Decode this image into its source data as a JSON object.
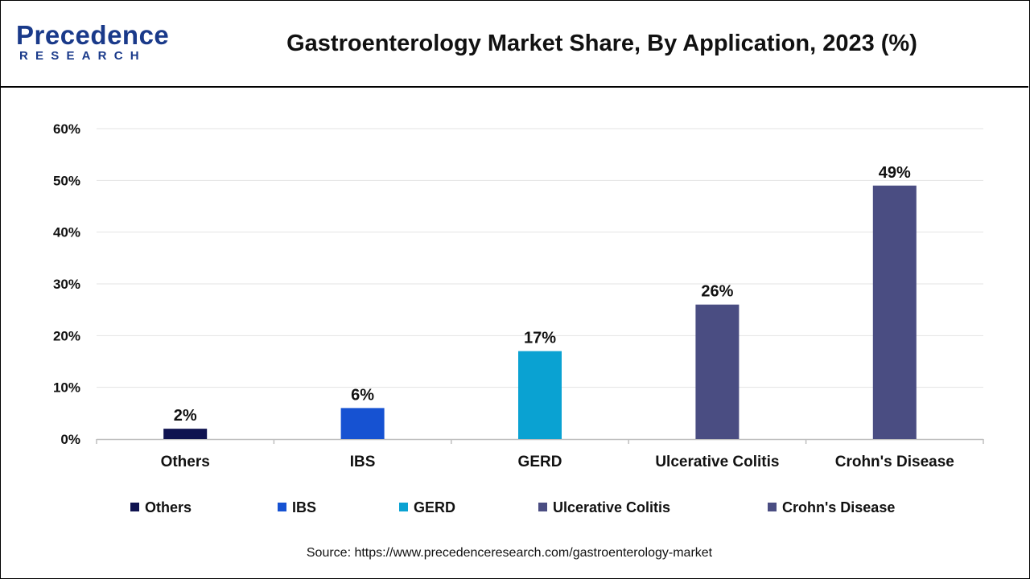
{
  "header": {
    "logo_text": "Precedence",
    "logo_subtext": "RESEARCH",
    "title": "Gastroenterology Market Share, By Application, 2023 (%)"
  },
  "colors": {
    "brand": "#1a3a8a",
    "gridline": "#e3e3e3",
    "axis": "#bfbfbf"
  },
  "chart_data": {
    "type": "bar",
    "title": "Gastroenterology Market Share, By Application, 2023 (%)",
    "categories": [
      "Others",
      "IBS",
      "GERD",
      "Ulcerative Colitis",
      "Crohn's Disease"
    ],
    "values": [
      2,
      6,
      17,
      26,
      49
    ],
    "data_labels": [
      "2%",
      "6%",
      "17%",
      "26%",
      "49%"
    ],
    "colors": [
      "#0f1350",
      "#1652d2",
      "#0aa2d2",
      "#4a4d82",
      "#4a4d82"
    ],
    "ylim": [
      0,
      60
    ],
    "yticks": [
      0,
      10,
      20,
      30,
      40,
      50,
      60
    ],
    "ytick_labels": [
      "0%",
      "10%",
      "20%",
      "30%",
      "40%",
      "50%",
      "60%"
    ],
    "grid": true,
    "legend": {
      "placement": "bottom",
      "entries": [
        "Others",
        "IBS",
        "GERD",
        "Ulcerative Colitis",
        "Crohn's Disease"
      ]
    }
  },
  "footer": {
    "source": "Source: https://www.precedenceresearch.com/gastroenterology-market"
  }
}
